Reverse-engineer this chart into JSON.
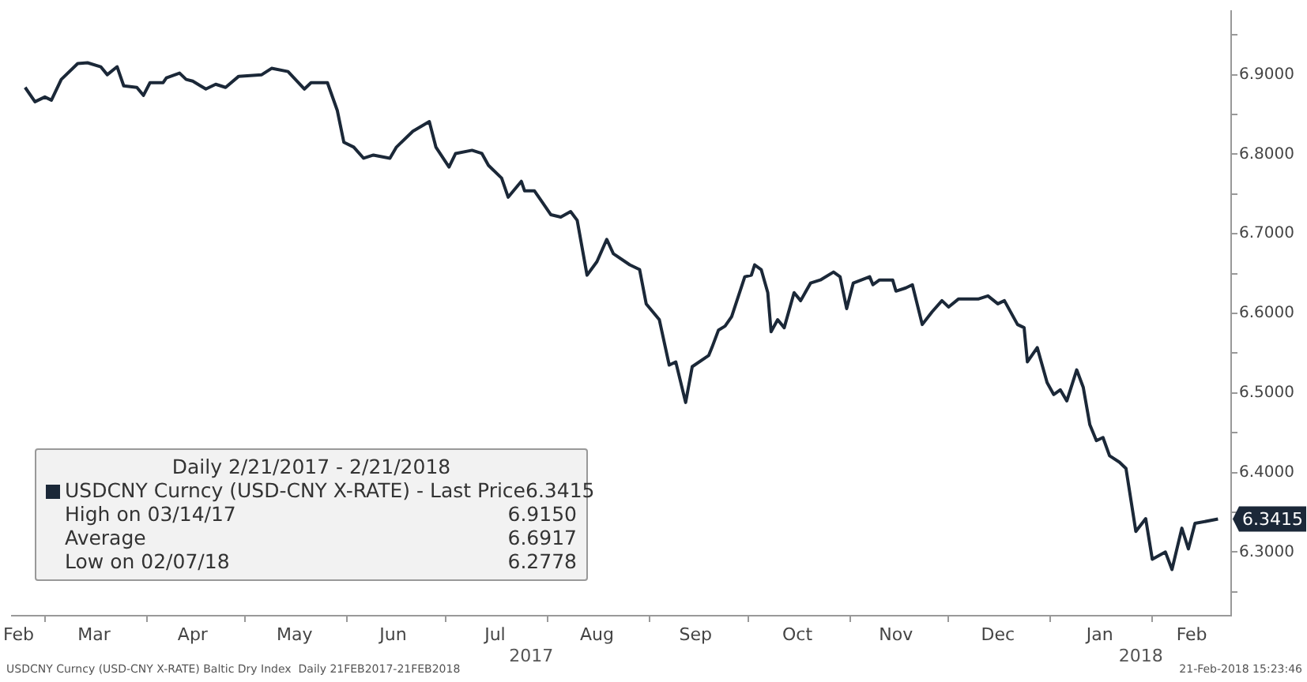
{
  "chart_data": {
    "type": "line",
    "legend_title": "Daily 2/21/2017 - 2/21/2018",
    "legend": "bottom left",
    "series": [
      {
        "name": "USDCNY Curncy (USD-CNY X-RATE) - Last Price",
        "color": "#1b2838",
        "value_labels": [
          null,
          null,
          null,
          null,
          null,
          null,
          null,
          null,
          null,
          null,
          null,
          null,
          null,
          null,
          null,
          null,
          null,
          null,
          null,
          null,
          null,
          null,
          null,
          null,
          null,
          null,
          null,
          null,
          null,
          null,
          null,
          null,
          null,
          null,
          null,
          null,
          null,
          null,
          null,
          null,
          null,
          null,
          null,
          null,
          null,
          null,
          null,
          null,
          null,
          null,
          null,
          null,
          null,
          null,
          null,
          null,
          null,
          null,
          null,
          null,
          null,
          null,
          null,
          null,
          null,
          null,
          null,
          null,
          null,
          null,
          null,
          null,
          null,
          null,
          null,
          null,
          null,
          null,
          null,
          null,
          null,
          null,
          null,
          null,
          null,
          null,
          null,
          null,
          null,
          null,
          null,
          null,
          null,
          null,
          null,
          null,
          null,
          null,
          null,
          null,
          null,
          null,
          null,
          null,
          null,
          null,
          null,
          null,
          null,
          null,
          null,
          null,
          null,
          null,
          null,
          null,
          null,
          null,
          null,
          null,
          null,
          null,
          null,
          null,
          null,
          null,
          "6.3415"
        ],
        "x": [
          "2017-02-23",
          "2017-02-26",
          "2017-03-01",
          "2017-03-03",
          "2017-03-06",
          "2017-03-11",
          "2017-03-14",
          "2017-03-18",
          "2017-03-20",
          "2017-03-23",
          "2017-03-25",
          "2017-03-29",
          "2017-03-31",
          "2017-04-02",
          "2017-04-06",
          "2017-04-07",
          "2017-04-11",
          "2017-04-13",
          "2017-04-15",
          "2017-04-19",
          "2017-04-22",
          "2017-04-25",
          "2017-04-29",
          "2017-05-06",
          "2017-05-09",
          "2017-05-14",
          "2017-05-19",
          "2017-05-21",
          "2017-05-26",
          "2017-05-29",
          "2017-05-31",
          "2017-06-03",
          "2017-06-06",
          "2017-06-09",
          "2017-06-14",
          "2017-06-16",
          "2017-06-21",
          "2017-06-26",
          "2017-06-28",
          "2017-07-02",
          "2017-07-04",
          "2017-07-09",
          "2017-07-12",
          "2017-07-14",
          "2017-07-18",
          "2017-07-20",
          "2017-07-24",
          "2017-07-25",
          "2017-07-28",
          "2017-08-02",
          "2017-08-05",
          "2017-08-08",
          "2017-08-10",
          "2017-08-13",
          "2017-08-16",
          "2017-08-19",
          "2017-08-21",
          "2017-08-26",
          "2017-08-29",
          "2017-08-31",
          "2017-09-04",
          "2017-09-07",
          "2017-09-09",
          "2017-09-12",
          "2017-09-14",
          "2017-09-19",
          "2017-09-20",
          "2017-09-22",
          "2017-09-24",
          "2017-09-26",
          "2017-09-30",
          "2017-10-02",
          "2017-10-03",
          "2017-10-05",
          "2017-10-07",
          "2017-10-08",
          "2017-10-10",
          "2017-10-12",
          "2017-10-15",
          "2017-10-17",
          "2017-10-20",
          "2017-10-23",
          "2017-10-27",
          "2017-10-29",
          "2017-10-31",
          "2017-11-02",
          "2017-11-07",
          "2017-11-08",
          "2017-11-10",
          "2017-11-14",
          "2017-11-15",
          "2017-11-18",
          "2017-11-20",
          "2017-11-23",
          "2017-11-26",
          "2017-11-29",
          "2017-12-01",
          "2017-12-04",
          "2017-12-10",
          "2017-12-13",
          "2017-12-16",
          "2017-12-18",
          "2017-12-22",
          "2017-12-24",
          "2017-12-25",
          "2017-12-28",
          "2017-12-31",
          "2018-01-02",
          "2018-01-04",
          "2018-01-06",
          "2018-01-09",
          "2018-01-11",
          "2018-01-13",
          "2018-01-15",
          "2018-01-17",
          "2018-01-19",
          "2018-01-22",
          "2018-01-24",
          "2018-01-27",
          "2018-01-30",
          "2018-02-01",
          "2018-02-05",
          "2018-02-07",
          "2018-02-10",
          "2018-02-12",
          "2018-02-14",
          "2018-02-21"
        ],
        "values": [
          6.884,
          6.866,
          6.872,
          6.868,
          6.894,
          6.914,
          6.915,
          6.91,
          6.9,
          6.91,
          6.886,
          6.884,
          6.874,
          6.89,
          6.89,
          6.896,
          6.902,
          6.894,
          6.892,
          6.882,
          6.888,
          6.884,
          6.898,
          6.9,
          6.908,
          6.904,
          6.882,
          6.89,
          6.89,
          6.855,
          6.815,
          6.809,
          6.795,
          6.799,
          6.795,
          6.809,
          6.829,
          6.841,
          6.809,
          6.784,
          6.801,
          6.805,
          6.801,
          6.786,
          6.77,
          6.746,
          6.766,
          6.754,
          6.754,
          6.724,
          6.721,
          6.728,
          6.717,
          6.648,
          6.665,
          6.693,
          6.675,
          6.661,
          6.655,
          6.612,
          6.592,
          6.535,
          6.539,
          6.488,
          6.533,
          6.547,
          6.557,
          6.579,
          6.584,
          6.596,
          6.646,
          6.648,
          6.661,
          6.655,
          6.626,
          6.577,
          6.592,
          6.582,
          6.626,
          6.616,
          6.638,
          6.642,
          6.652,
          6.646,
          6.606,
          6.638,
          6.646,
          6.636,
          6.642,
          6.642,
          6.628,
          6.632,
          6.636,
          6.586,
          6.602,
          6.616,
          6.608,
          6.618,
          6.618,
          6.622,
          6.612,
          6.616,
          6.586,
          6.582,
          6.539,
          6.557,
          6.513,
          6.498,
          6.504,
          6.49,
          6.529,
          6.507,
          6.46,
          6.44,
          6.444,
          6.421,
          6.413,
          6.405,
          6.326,
          6.342,
          6.291,
          6.3,
          6.278,
          6.33,
          6.304,
          6.336,
          6.3415
        ]
      }
    ],
    "xlim": [
      "2017-02-19",
      "2018-02-25"
    ],
    "xticks": [
      {
        "value": "2017-02-21",
        "label": "Feb"
      },
      {
        "value": "2017-03-01",
        "label": null
      },
      {
        "value": "2017-03-16",
        "label": "Mar"
      },
      {
        "value": "2017-04-01",
        "label": null
      },
      {
        "value": "2017-04-15",
        "label": "Apr"
      },
      {
        "value": "2017-05-01",
        "label": null
      },
      {
        "value": "2017-05-16",
        "label": "May"
      },
      {
        "value": "2017-06-01",
        "label": null
      },
      {
        "value": "2017-06-15",
        "label": "Jun"
      },
      {
        "value": "2017-07-01",
        "label": null
      },
      {
        "value": "2017-07-16",
        "label": "Jul"
      },
      {
        "value": "2017-08-01",
        "label": null
      },
      {
        "value": "2017-08-16",
        "label": "Aug"
      },
      {
        "value": "2017-09-01",
        "label": null
      },
      {
        "value": "2017-09-15",
        "label": "Sep"
      },
      {
        "value": "2017-10-01",
        "label": null
      },
      {
        "value": "2017-10-16",
        "label": "Oct"
      },
      {
        "value": "2017-11-01",
        "label": null
      },
      {
        "value": "2017-11-15",
        "label": "Nov"
      },
      {
        "value": "2017-12-01",
        "label": null
      },
      {
        "value": "2017-12-16",
        "label": "Dec"
      },
      {
        "value": "2018-01-01",
        "label": null
      },
      {
        "value": "2018-01-16",
        "label": "Jan"
      },
      {
        "value": "2018-02-01",
        "label": null
      },
      {
        "value": "2018-02-13",
        "label": "Feb"
      }
    ],
    "ylim": [
      6.22,
      6.98
    ],
    "yticks": [
      {
        "value": 6.25,
        "label": null
      },
      {
        "value": 6.3,
        "label": "6.3000"
      },
      {
        "value": 6.35,
        "label": null
      },
      {
        "value": 6.4,
        "label": "6.4000"
      },
      {
        "value": 6.45,
        "label": null
      },
      {
        "value": 6.5,
        "label": "6.5000"
      },
      {
        "value": 6.55,
        "label": null
      },
      {
        "value": 6.6,
        "label": "6.6000"
      },
      {
        "value": 6.65,
        "label": null
      },
      {
        "value": 6.7,
        "label": "6.7000"
      },
      {
        "value": 6.75,
        "label": null
      },
      {
        "value": 6.8,
        "label": "6.8000"
      },
      {
        "value": 6.85,
        "label": null
      },
      {
        "value": 6.9,
        "label": "6.9000"
      },
      {
        "value": 6.95,
        "label": null
      }
    ],
    "grid": false,
    "marker": "none",
    "line_style": "solid",
    "annotations": [
      "6.3415",
      "High on 03/14/17",
      "6.9150",
      "Average",
      "6.6917",
      "Low on 02/07/18",
      "6.2778",
      "2017",
      "2018",
      "USDCNY Curncy (USD-CNY X-RATE) Baltic Dry Index  Daily 21FEB2017-21FEB2018",
      "21-Feb-2018 15:23:46"
    ]
  }
}
